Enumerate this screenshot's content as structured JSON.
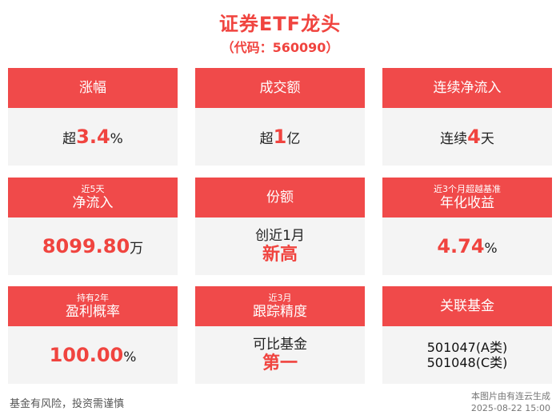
{
  "header": {
    "title": "证券ETF龙头",
    "subtitle": "（代码：560090）"
  },
  "cards": {
    "rise": {
      "label": "涨幅",
      "prefix": "超",
      "value": "3.4",
      "suffix": "%"
    },
    "turnover": {
      "label": "成交额",
      "prefix": "超",
      "value": "1",
      "suffix": "亿"
    },
    "inflow": {
      "label": "连续净流入",
      "prefix": "连续",
      "value": "4",
      "suffix": "天"
    },
    "net5": {
      "small": "近5天",
      "label": "净流入",
      "value": "8099.80",
      "suffix": "万"
    },
    "share": {
      "label": "份额",
      "line1": "创近1月",
      "line2": "新高"
    },
    "annual": {
      "small": "近3个月超越基准",
      "label": "年化收益",
      "value": "4.74",
      "suffix": "%"
    },
    "profit": {
      "small": "持有2年",
      "label": "盈利概率",
      "value": "100.00",
      "suffix": "%"
    },
    "tracking": {
      "small": "近3月",
      "label": "跟踪精度",
      "line1": "可比基金",
      "line2": "第一"
    },
    "related": {
      "label": "关联基金",
      "code1": "501047(A类)",
      "code2": "501048(C类)"
    }
  },
  "footer": {
    "disclaimer": "基金有风险，投资需谨慎",
    "source": "本图片由有连云生成",
    "timestamp": "2025-08-22 15:00"
  }
}
